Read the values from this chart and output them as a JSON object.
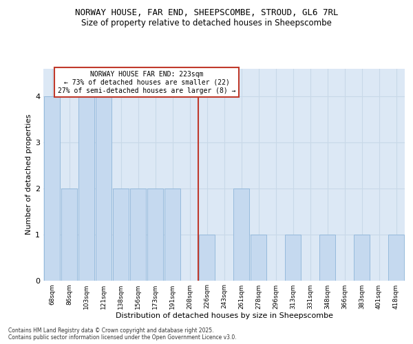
{
  "title_line1": "NORWAY HOUSE, FAR END, SHEEPSCOMBE, STROUD, GL6 7RL",
  "title_line2": "Size of property relative to detached houses in Sheepscombe",
  "xlabel": "Distribution of detached houses by size in Sheepscombe",
  "ylabel": "Number of detached properties",
  "categories": [
    "68sqm",
    "86sqm",
    "103sqm",
    "121sqm",
    "138sqm",
    "156sqm",
    "173sqm",
    "191sqm",
    "208sqm",
    "226sqm",
    "243sqm",
    "261sqm",
    "278sqm",
    "296sqm",
    "313sqm",
    "331sqm",
    "348sqm",
    "366sqm",
    "383sqm",
    "401sqm",
    "418sqm"
  ],
  "values": [
    4,
    2,
    4,
    4,
    2,
    2,
    2,
    2,
    0,
    1,
    0,
    2,
    1,
    0,
    1,
    0,
    1,
    0,
    1,
    0,
    1
  ],
  "bar_color": "#c5d9ef",
  "bar_edge_color": "#8db4d9",
  "vline_x_idx": 8.5,
  "vline_color": "#c0392b",
  "annotation_line1": "NORWAY HOUSE FAR END: 223sqm",
  "annotation_line2": "← 73% of detached houses are smaller (22)",
  "annotation_line3": "27% of semi-detached houses are larger (8) →",
  "annotation_box_color": "#c0392b",
  "annotation_box_bg": "white",
  "ylim": [
    0,
    4.6
  ],
  "yticks": [
    0,
    1,
    2,
    3,
    4
  ],
  "grid_color": "#c8d8e8",
  "bg_color": "#dce8f5",
  "footer_text": "Contains HM Land Registry data © Crown copyright and database right 2025.\nContains public sector information licensed under the Open Government Licence v3.0.",
  "title_fontsize": 9,
  "subtitle_fontsize": 8.5,
  "axis_label_fontsize": 8,
  "tick_fontsize": 6.5,
  "annotation_fontsize": 7,
  "footer_fontsize": 5.5
}
